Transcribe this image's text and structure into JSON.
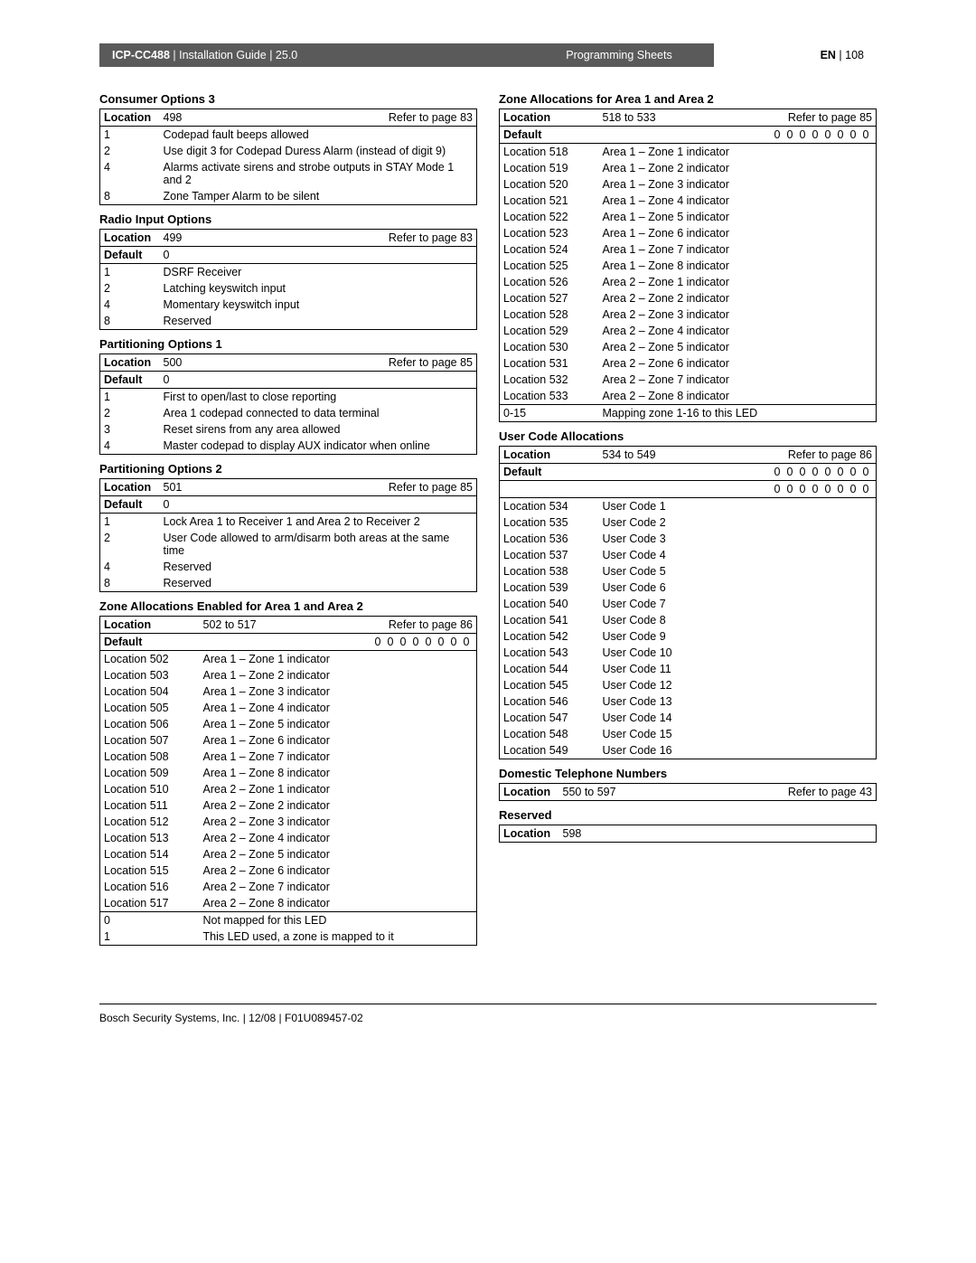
{
  "header": {
    "model": "ICP-CC488",
    "guide": "Installation Guide",
    "section_num": "25.0",
    "middle": "Programming Sheets",
    "lang": "EN",
    "page": "108"
  },
  "footer": "Bosch Security Systems, Inc. | 12/08 | F01U089457-02",
  "labels": {
    "location": "Location",
    "default": "Default",
    "refer_prefix": "Refer to page "
  },
  "left": [
    {
      "title": "Consumer Options 3",
      "loc": "498",
      "ref": "83",
      "rows": [
        [
          "1",
          "Codepad fault beeps allowed"
        ],
        [
          "2",
          "Use digit 3 for Codepad Duress Alarm (instead of digit 9)"
        ],
        [
          "4",
          "Alarms activate sirens and strobe outputs in STAY Mode 1 and 2"
        ],
        [
          "8",
          "Zone Tamper Alarm to be silent"
        ]
      ]
    },
    {
      "title": "Radio Input Options",
      "loc": "499",
      "ref": "83",
      "default": "0",
      "rows": [
        [
          "1",
          "DSRF Receiver"
        ],
        [
          "2",
          "Latching keyswitch input"
        ],
        [
          "4",
          "Momentary keyswitch input"
        ],
        [
          "8",
          "Reserved"
        ]
      ]
    },
    {
      "title": "Partitioning Options 1",
      "loc": "500",
      "ref": "85",
      "default": "0",
      "rows": [
        [
          "1",
          "First to open/last to close reporting"
        ],
        [
          "2",
          "Area 1 codepad connected to data terminal"
        ],
        [
          "3",
          "Reset sirens from any area allowed"
        ],
        [
          "4",
          "Master codepad to display AUX indicator when online"
        ]
      ]
    },
    {
      "title": "Partitioning Options 2",
      "loc": "501",
      "ref": "85",
      "default": "0",
      "rows": [
        [
          "1",
          "Lock Area 1 to Receiver 1 and Area 2 to Receiver 2"
        ],
        [
          "2",
          "User Code allowed to arm/disarm both areas at the same time"
        ],
        [
          "4",
          "Reserved"
        ],
        [
          "8",
          "Reserved"
        ]
      ]
    },
    {
      "title": "Zone Allocations Enabled for Area 1 and Area 2",
      "loc": "502 to 517",
      "ref": "86",
      "default_bits": [
        "0",
        "0",
        "0",
        "0",
        "0",
        "0",
        "0",
        "0"
      ],
      "locrows": [
        [
          "Location 502",
          "Area 1 – Zone 1 indicator"
        ],
        [
          "Location 503",
          "Area 1 – Zone 2 indicator"
        ],
        [
          "Location 504",
          "Area 1 – Zone 3 indicator"
        ],
        [
          "Location 505",
          "Area 1 – Zone 4 indicator"
        ],
        [
          "Location 506",
          "Area 1 – Zone 5 indicator"
        ],
        [
          "Location 507",
          "Area 1 – Zone 6 indicator"
        ],
        [
          "Location 508",
          "Area 1 – Zone 7 indicator"
        ],
        [
          "Location 509",
          "Area 1 – Zone 8 indicator"
        ],
        [
          "Location 510",
          "Area 2 – Zone 1 indicator"
        ],
        [
          "Location 511",
          "Area 2 – Zone 2 indicator"
        ],
        [
          "Location 512",
          "Area 2 – Zone 3 indicator"
        ],
        [
          "Location 513",
          "Area 2 – Zone 4 indicator"
        ],
        [
          "Location 514",
          "Area 2 – Zone 5 indicator"
        ],
        [
          "Location 515",
          "Area 2 – Zone 6 indicator"
        ],
        [
          "Location 516",
          "Area 2 – Zone 7 indicator"
        ],
        [
          "Location 517",
          "Area 2 – Zone 8 indicator"
        ]
      ],
      "footer_rows": [
        [
          "0",
          "Not mapped for this LED"
        ],
        [
          "1",
          "This LED used, a zone is mapped to it"
        ]
      ]
    }
  ],
  "right": [
    {
      "title": "Zone Allocations for Area 1 and Area 2",
      "loc": "518 to 533",
      "ref": "85",
      "default_bits": [
        "0",
        "0",
        "0",
        "0",
        "0",
        "0",
        "0",
        "0"
      ],
      "locrows": [
        [
          "Location 518",
          "Area 1 – Zone 1 indicator"
        ],
        [
          "Location 519",
          "Area 1 – Zone 2 indicator"
        ],
        [
          "Location 520",
          "Area 1 – Zone 3 indicator"
        ],
        [
          "Location 521",
          "Area 1 – Zone 4 indicator"
        ],
        [
          "Location 522",
          "Area 1 – Zone 5 indicator"
        ],
        [
          "Location 523",
          "Area 1 – Zone 6 indicator"
        ],
        [
          "Location 524",
          "Area 1 – Zone 7 indicator"
        ],
        [
          "Location 525",
          "Area 1 – Zone 8 indicator"
        ],
        [
          "Location 526",
          "Area 2 – Zone 1 indicator"
        ],
        [
          "Location 527",
          "Area 2 – Zone 2 indicator"
        ],
        [
          "Location 528",
          "Area 2 – Zone 3 indicator"
        ],
        [
          "Location 529",
          "Area 2 – Zone 4 indicator"
        ],
        [
          "Location 530",
          "Area 2 – Zone 5 indicator"
        ],
        [
          "Location 531",
          "Area 2 – Zone 6 indicator"
        ],
        [
          "Location 532",
          "Area 2 – Zone 7 indicator"
        ],
        [
          "Location 533",
          "Area 2 – Zone 8 indicator"
        ]
      ],
      "footer_rows": [
        [
          "0-15",
          "Mapping zone 1-16 to this LED"
        ]
      ]
    },
    {
      "title": "User Code Allocations",
      "loc": "534 to 549",
      "ref": "86",
      "default_bits_rows": [
        [
          "0",
          "0",
          "0",
          "0",
          "0",
          "0",
          "0",
          "0"
        ],
        [
          "0",
          "0",
          "0",
          "0",
          "0",
          "0",
          "0",
          "0"
        ]
      ],
      "locrows": [
        [
          "Location 534",
          "User Code 1"
        ],
        [
          "Location 535",
          "User Code 2"
        ],
        [
          "Location 536",
          "User Code 3"
        ],
        [
          "Location 537",
          "User Code 4"
        ],
        [
          "Location 538",
          "User Code 5"
        ],
        [
          "Location 539",
          "User Code 6"
        ],
        [
          "Location 540",
          "User Code 7"
        ],
        [
          "Location 541",
          "User Code 8"
        ],
        [
          "Location 542",
          "User Code 9"
        ],
        [
          "Location 543",
          "User Code 10"
        ],
        [
          "Location 544",
          "User Code 11"
        ],
        [
          "Location 545",
          "User Code 12"
        ],
        [
          "Location 546",
          "User Code 13"
        ],
        [
          "Location 547",
          "User Code 14"
        ],
        [
          "Location 548",
          "User Code 15"
        ],
        [
          "Location 549",
          "User Code 16"
        ]
      ]
    },
    {
      "title": "Domestic Telephone Numbers",
      "loc": "550 to 597",
      "ref": "43"
    },
    {
      "title": "Reserved",
      "loc": "598"
    }
  ]
}
